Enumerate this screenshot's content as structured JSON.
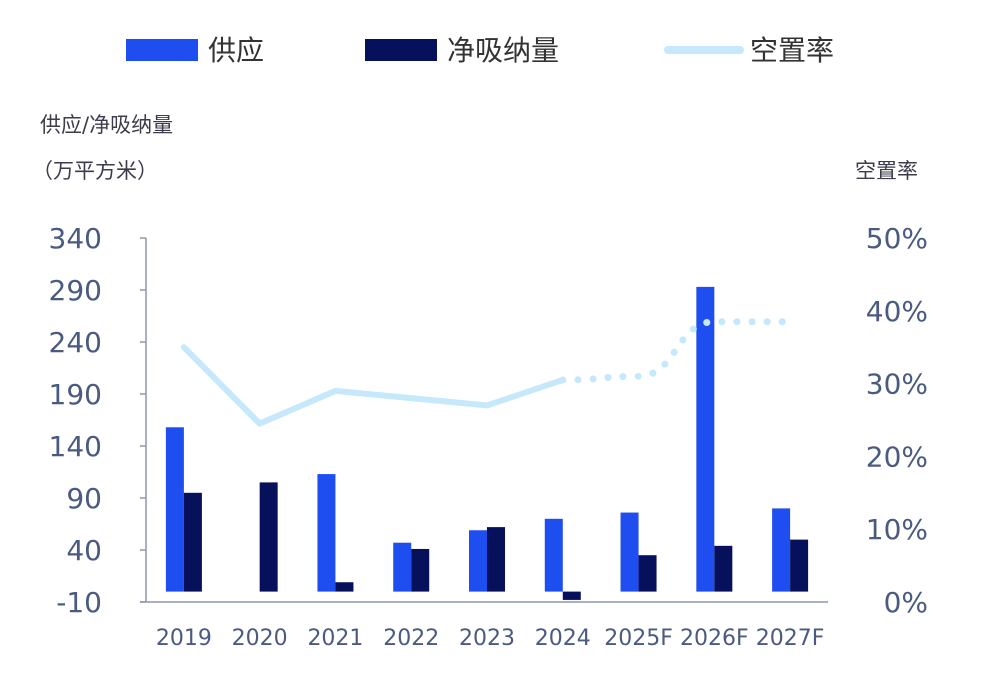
{
  "chart_data": {
    "type": "bar",
    "categories": [
      "2019",
      "2020",
      "2021",
      "2022",
      "2023",
      "2024",
      "2025F",
      "2026F",
      "2027F"
    ],
    "series": [
      {
        "name": "供应",
        "type": "bar",
        "axis": "left",
        "color": "#1f4ef0",
        "values": [
          158,
          0,
          113,
          47,
          59,
          70,
          76,
          293,
          80
        ]
      },
      {
        "name": "净吸纳量",
        "type": "bar",
        "axis": "left",
        "color": "#07105a",
        "values": [
          95,
          105,
          9,
          41,
          62,
          -8,
          35,
          44,
          50
        ]
      },
      {
        "name": "空置率",
        "type": "line",
        "axis": "right",
        "color": "#c5e8fb",
        "values": [
          35,
          24.5,
          29,
          28,
          27,
          30.5,
          31,
          38.5,
          38.5
        ],
        "dashed_from_index": 5
      }
    ],
    "ylabel_line1": "供应/净吸纳量",
    "ylabel_line2": "（万平方米）",
    "y2label": "空置率",
    "ylim": [
      -10,
      340
    ],
    "yticks": [
      "340",
      "290",
      "240",
      "190",
      "140",
      "90",
      "40",
      "-10"
    ],
    "y2lim": [
      0,
      50
    ],
    "y2ticks": [
      "50%",
      "40%",
      "30%",
      "20%",
      "10%",
      "0%"
    ],
    "legend_position": "top",
    "grid": false
  }
}
